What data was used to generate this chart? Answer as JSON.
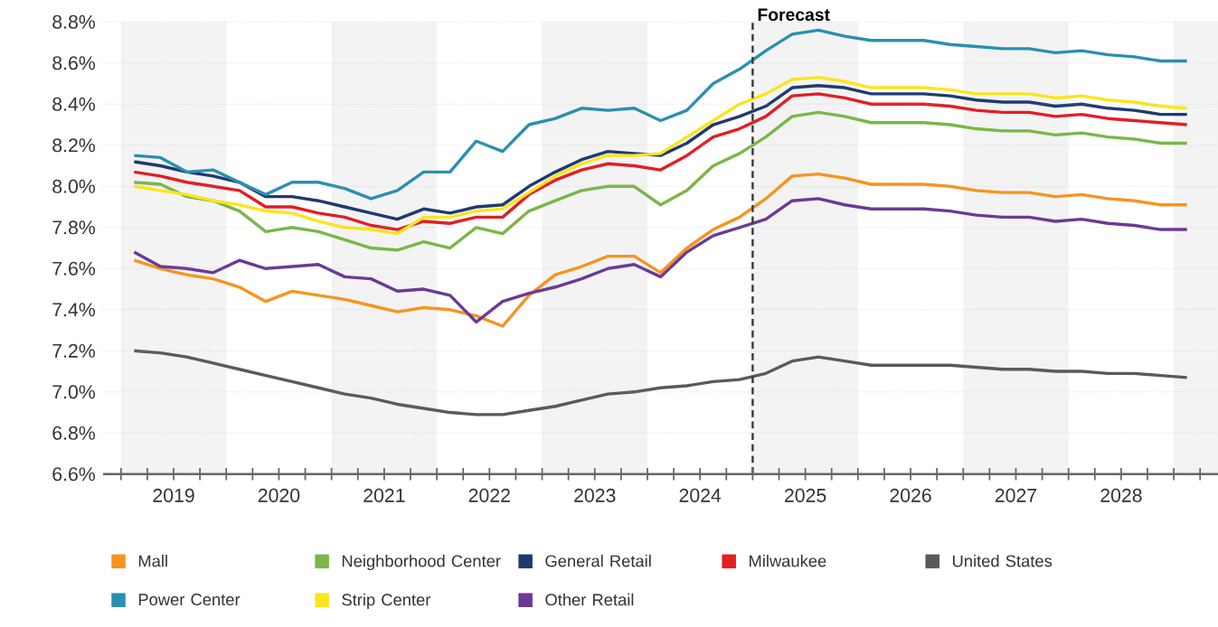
{
  "chart_data": {
    "type": "line",
    "x": [
      2019.125,
      2019.375,
      2019.625,
      2019.875,
      2020.125,
      2020.375,
      2020.625,
      2020.875,
      2021.125,
      2021.375,
      2021.625,
      2021.875,
      2022.125,
      2022.375,
      2022.625,
      2022.875,
      2023.125,
      2023.375,
      2023.625,
      2023.875,
      2024.125,
      2024.375,
      2024.625,
      2024.875,
      2025.125,
      2025.375,
      2025.625,
      2025.875,
      2026.125,
      2026.375,
      2026.625,
      2026.875,
      2027.125,
      2027.375,
      2027.625,
      2027.875,
      2028.125,
      2028.375,
      2028.625,
      2028.875,
      2029.125
    ],
    "series": [
      {
        "name": "Mall",
        "color": "#f7941d",
        "values": [
          7.64,
          7.6,
          7.57,
          7.55,
          7.51,
          7.44,
          7.49,
          7.47,
          7.45,
          7.42,
          7.39,
          7.41,
          7.4,
          7.37,
          7.32,
          7.47,
          7.57,
          7.61,
          7.66,
          7.66,
          7.58,
          7.7,
          7.79,
          7.85,
          7.94,
          8.05,
          8.06,
          8.04,
          8.01,
          8.01,
          8.01,
          8.0,
          7.98,
          7.97,
          7.97,
          7.95,
          7.96,
          7.94,
          7.93,
          7.91,
          7.91
        ]
      },
      {
        "name": "Neighborhood Center",
        "color": "#7ab648",
        "values": [
          8.02,
          8.01,
          7.95,
          7.93,
          7.88,
          7.78,
          7.8,
          7.78,
          7.74,
          7.7,
          7.69,
          7.73,
          7.7,
          7.8,
          7.77,
          7.88,
          7.93,
          7.98,
          8.0,
          8.0,
          7.91,
          7.98,
          8.1,
          8.16,
          8.24,
          8.34,
          8.36,
          8.34,
          8.31,
          8.31,
          8.31,
          8.3,
          8.28,
          8.27,
          8.27,
          8.25,
          8.26,
          8.24,
          8.23,
          8.21,
          8.21
        ]
      },
      {
        "name": "General Retail",
        "color": "#1f3a70",
        "values": [
          8.12,
          8.1,
          8.07,
          8.05,
          8.02,
          7.95,
          7.95,
          7.93,
          7.9,
          7.87,
          7.84,
          7.89,
          7.87,
          7.9,
          7.91,
          8.0,
          8.07,
          8.13,
          8.17,
          8.16,
          8.15,
          8.21,
          8.3,
          8.34,
          8.39,
          8.48,
          8.49,
          8.48,
          8.45,
          8.45,
          8.45,
          8.44,
          8.42,
          8.41,
          8.41,
          8.39,
          8.4,
          8.38,
          8.37,
          8.35,
          8.35
        ]
      },
      {
        "name": "Milwaukee",
        "color": "#e31e24",
        "values": [
          8.07,
          8.05,
          8.02,
          8.0,
          7.98,
          7.9,
          7.9,
          7.87,
          7.85,
          7.81,
          7.79,
          7.83,
          7.82,
          7.85,
          7.85,
          7.96,
          8.03,
          8.08,
          8.11,
          8.1,
          8.08,
          8.15,
          8.24,
          8.28,
          8.34,
          8.44,
          8.45,
          8.43,
          8.4,
          8.4,
          8.4,
          8.39,
          8.37,
          8.36,
          8.36,
          8.34,
          8.35,
          8.33,
          8.32,
          8.31,
          8.3
        ]
      },
      {
        "name": "United States",
        "color": "#5a5a5a",
        "values": [
          7.2,
          7.19,
          7.17,
          7.14,
          7.11,
          7.08,
          7.05,
          7.02,
          6.99,
          6.97,
          6.94,
          6.92,
          6.9,
          6.89,
          6.89,
          6.91,
          6.93,
          6.96,
          6.99,
          7.0,
          7.02,
          7.03,
          7.05,
          7.06,
          7.09,
          7.15,
          7.17,
          7.15,
          7.13,
          7.13,
          7.13,
          7.13,
          7.12,
          7.11,
          7.11,
          7.1,
          7.1,
          7.09,
          7.09,
          7.08,
          7.07
        ]
      },
      {
        "name": "Power Center",
        "color": "#2a8fb0",
        "values": [
          8.15,
          8.14,
          8.07,
          8.08,
          8.02,
          7.96,
          8.02,
          8.02,
          7.99,
          7.94,
          7.98,
          8.07,
          8.07,
          8.22,
          8.17,
          8.3,
          8.33,
          8.38,
          8.37,
          8.38,
          8.32,
          8.37,
          8.5,
          8.57,
          8.66,
          8.74,
          8.76,
          8.73,
          8.71,
          8.71,
          8.71,
          8.69,
          8.68,
          8.67,
          8.67,
          8.65,
          8.66,
          8.64,
          8.63,
          8.61,
          8.61
        ]
      },
      {
        "name": "Strip Center",
        "color": "#fce51d",
        "values": [
          8.0,
          7.98,
          7.96,
          7.93,
          7.91,
          7.88,
          7.87,
          7.83,
          7.8,
          7.79,
          7.77,
          7.85,
          7.85,
          7.88,
          7.89,
          7.97,
          8.05,
          8.11,
          8.15,
          8.15,
          8.16,
          8.24,
          8.32,
          8.4,
          8.45,
          8.52,
          8.53,
          8.51,
          8.48,
          8.48,
          8.48,
          8.47,
          8.45,
          8.45,
          8.45,
          8.43,
          8.44,
          8.42,
          8.41,
          8.39,
          8.38
        ]
      },
      {
        "name": "Other Retail",
        "color": "#6a3a96",
        "values": [
          7.68,
          7.61,
          7.6,
          7.58,
          7.64,
          7.6,
          7.61,
          7.62,
          7.56,
          7.55,
          7.49,
          7.5,
          7.47,
          7.34,
          7.44,
          7.48,
          7.51,
          7.55,
          7.6,
          7.62,
          7.56,
          7.68,
          7.76,
          7.8,
          7.84,
          7.93,
          7.94,
          7.91,
          7.89,
          7.89,
          7.89,
          7.88,
          7.86,
          7.85,
          7.85,
          7.83,
          7.84,
          7.82,
          7.81,
          7.79,
          7.79
        ]
      }
    ],
    "xlim": [
      2018.83,
      2029.42
    ],
    "ylim": [
      6.6,
      8.8
    ],
    "xticks": [
      {
        "value": 2019,
        "label": null
      },
      {
        "value": 2019.25,
        "label": null
      },
      {
        "value": 2019.5,
        "label": "2019"
      },
      {
        "value": 2019.75,
        "label": null
      },
      {
        "value": 2020,
        "label": null
      },
      {
        "value": 2020.25,
        "label": null
      },
      {
        "value": 2020.5,
        "label": "2020"
      },
      {
        "value": 2020.75,
        "label": null
      },
      {
        "value": 2021,
        "label": null
      },
      {
        "value": 2021.25,
        "label": null
      },
      {
        "value": 2021.5,
        "label": "2021"
      },
      {
        "value": 2021.75,
        "label": null
      },
      {
        "value": 2022,
        "label": null
      },
      {
        "value": 2022.25,
        "label": null
      },
      {
        "value": 2022.5,
        "label": "2022"
      },
      {
        "value": 2022.75,
        "label": null
      },
      {
        "value": 2023,
        "label": null
      },
      {
        "value": 2023.25,
        "label": null
      },
      {
        "value": 2023.5,
        "label": "2023"
      },
      {
        "value": 2023.75,
        "label": null
      },
      {
        "value": 2024,
        "label": null
      },
      {
        "value": 2024.25,
        "label": null
      },
      {
        "value": 2024.5,
        "label": "2024"
      },
      {
        "value": 2024.75,
        "label": null
      },
      {
        "value": 2025,
        "label": null
      },
      {
        "value": 2025.25,
        "label": null
      },
      {
        "value": 2025.5,
        "label": "2025"
      },
      {
        "value": 2025.75,
        "label": null
      },
      {
        "value": 2026,
        "label": null
      },
      {
        "value": 2026.25,
        "label": null
      },
      {
        "value": 2026.5,
        "label": "2026"
      },
      {
        "value": 2026.75,
        "label": null
      },
      {
        "value": 2027,
        "label": null
      },
      {
        "value": 2027.25,
        "label": null
      },
      {
        "value": 2027.5,
        "label": "2027"
      },
      {
        "value": 2027.75,
        "label": null
      },
      {
        "value": 2028,
        "label": null
      },
      {
        "value": 2028.25,
        "label": null
      },
      {
        "value": 2028.5,
        "label": "2028"
      },
      {
        "value": 2028.75,
        "label": null
      },
      {
        "value": 2029,
        "label": null
      },
      {
        "value": 2029.25,
        "label": null
      }
    ],
    "yticks": [
      {
        "value": 6.6,
        "label": "6.6%"
      },
      {
        "value": 6.8,
        "label": "6.8%"
      },
      {
        "value": 7.0,
        "label": "7.0%"
      },
      {
        "value": 7.2,
        "label": "7.2%"
      },
      {
        "value": 7.4,
        "label": "7.4%"
      },
      {
        "value": 7.6,
        "label": "7.6%"
      },
      {
        "value": 7.8,
        "label": "7.8%"
      },
      {
        "value": 8.0,
        "label": "8.0%"
      },
      {
        "value": 8.2,
        "label": "8.2%"
      },
      {
        "value": 8.4,
        "label": "8.4%"
      },
      {
        "value": 8.6,
        "label": "8.6%"
      },
      {
        "value": 8.8,
        "label": "8.8%"
      }
    ],
    "ref_lines": [
      {
        "axis": "x",
        "value": 2025,
        "label": "Forecast",
        "color": "#3a3a3a",
        "line_style": "dashed"
      }
    ],
    "bands": [
      {
        "axis": "x",
        "from": 2019,
        "to": 2020,
        "color": "#f3f3f3"
      },
      {
        "axis": "x",
        "from": 2021,
        "to": 2022,
        "color": "#f3f3f3"
      },
      {
        "axis": "x",
        "from": 2023,
        "to": 2024,
        "color": "#f3f3f3"
      },
      {
        "axis": "x",
        "from": 2025,
        "to": 2026,
        "color": "#f3f3f3"
      },
      {
        "axis": "x",
        "from": 2027,
        "to": 2028,
        "color": "#f3f3f3"
      },
      {
        "axis": "x",
        "from": 2029,
        "to": 2029.42,
        "color": "#f3f3f3"
      }
    ],
    "grid": "y",
    "legend": "bottom",
    "marker": "none",
    "line_style": "solid"
  }
}
